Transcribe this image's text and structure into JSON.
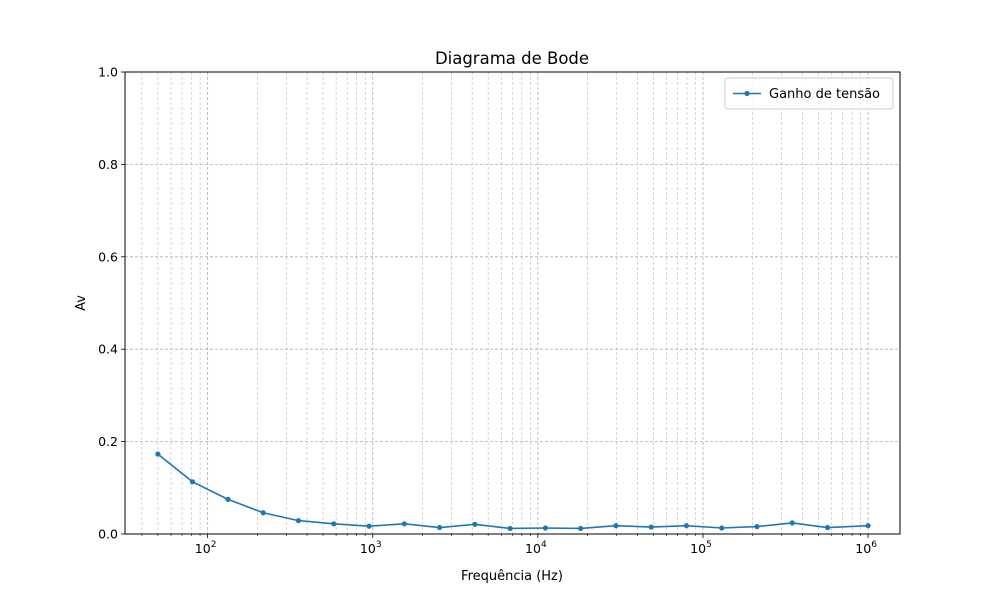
{
  "chart_data": {
    "type": "line",
    "title": "Diagrama de Bode",
    "xlabel": "Frequência (Hz)",
    "ylabel": "Av",
    "x_scale": "log",
    "xlim": [
      31.6,
      1560000
    ],
    "ylim": [
      0,
      1.0
    ],
    "grid": "both (major and minor, dashed)",
    "legend_position": "top-right",
    "x_major_ticks": [
      {
        "exp": 2,
        "base": "10",
        "sup": "2"
      },
      {
        "exp": 3,
        "base": "10",
        "sup": "3"
      },
      {
        "exp": 4,
        "base": "10",
        "sup": "4"
      },
      {
        "exp": 5,
        "base": "10",
        "sup": "5"
      },
      {
        "exp": 6,
        "base": "10",
        "sup": "6"
      }
    ],
    "y_ticks": [
      {
        "value": 0.0,
        "label": "0.0"
      },
      {
        "value": 0.2,
        "label": "0.2"
      },
      {
        "value": 0.4,
        "label": "0.4"
      },
      {
        "value": 0.6,
        "label": "0.6"
      },
      {
        "value": 0.8,
        "label": "0.8"
      },
      {
        "value": 1.0,
        "label": "1.0"
      }
    ],
    "series": [
      {
        "name": "Ganho de tensão",
        "color": "#1f77b4",
        "marker": "circle",
        "x": [
          50,
          81,
          133,
          217,
          355,
          581,
          950,
          1554,
          2540,
          4154,
          6793,
          11110,
          18160,
          29700,
          48570,
          79420,
          129900,
          212400,
          347300,
          567900,
          1000000
        ],
        "y": [
          0.173,
          0.113,
          0.075,
          0.046,
          0.029,
          0.022,
          0.017,
          0.022,
          0.014,
          0.021,
          0.012,
          0.013,
          0.012,
          0.018,
          0.015,
          0.018,
          0.013,
          0.016,
          0.024,
          0.014,
          0.018
        ]
      }
    ]
  }
}
